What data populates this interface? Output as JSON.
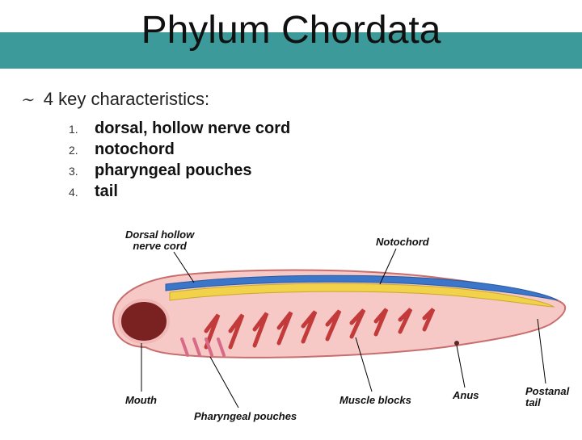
{
  "title": "Phylum Chordata",
  "subtitle": "4 key characteristics:",
  "bullet_glyph": "∼",
  "list": [
    {
      "n": "1.",
      "text": "dorsal, hollow nerve cord"
    },
    {
      "n": "2.",
      "text": "notochord"
    },
    {
      "n": "3.",
      "text": "pharyngeal pouches"
    },
    {
      "n": "4.",
      "text": "tail"
    }
  ],
  "diagram": {
    "type": "infographic",
    "organism_outline_fill": "#f6c9c7",
    "organism_outline_stroke": "#c86e6e",
    "nerve_cord_color": "#3c76c9",
    "notochord_color": "#f2d24a",
    "muscle_color": "#c23a3a",
    "mouth_fill": "#7a2222",
    "background_color": "#ffffff",
    "label_font_size": 13,
    "labels": {
      "nerve_cord": "Dorsal hollow\nnerve cord",
      "notochord": "Notochord",
      "mouth": "Mouth",
      "pharyngeal": "Pharyngeal pouches",
      "muscle_blocks": "Muscle blocks",
      "anus": "Anus",
      "postanal_tail": "Postanal\ntail"
    }
  },
  "colors": {
    "title_band": "#3c9a9a",
    "text": "#111111"
  }
}
